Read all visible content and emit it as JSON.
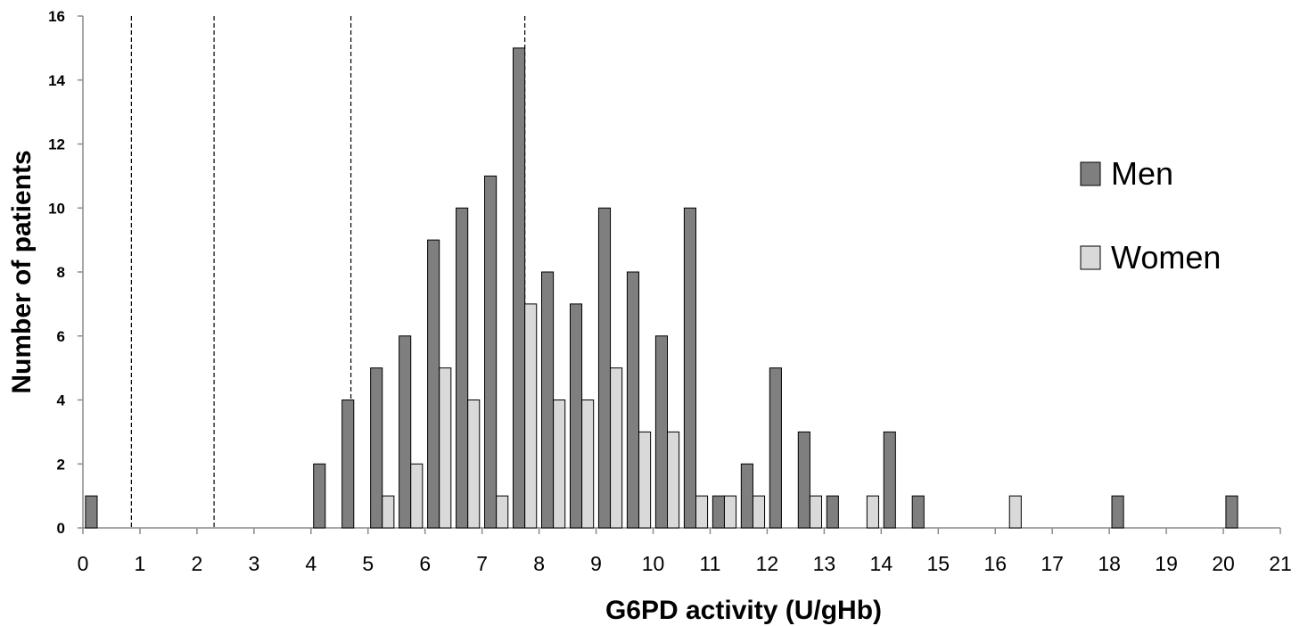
{
  "chart_data": {
    "type": "bar",
    "title": "",
    "xlabel": "G6PD activity (U/gHb)",
    "ylabel": "Number of patients",
    "xlim": [
      0,
      21
    ],
    "ylim": [
      0,
      16
    ],
    "x_ticks": [
      "0",
      "1",
      "2",
      "3",
      "4",
      "5",
      "6",
      "7",
      "8",
      "9",
      "10",
      "11",
      "12",
      "13",
      "14",
      "15",
      "16",
      "17",
      "18",
      "19",
      "20",
      "21"
    ],
    "y_ticks": [
      "0",
      "2",
      "4",
      "6",
      "8",
      "10",
      "12",
      "14",
      "16"
    ],
    "bin_width": 0.5,
    "bin_starts": [
      0,
      0.5,
      1,
      1.5,
      2,
      2.5,
      3,
      3.5,
      4,
      4.5,
      5,
      5.5,
      6,
      6.5,
      7,
      7.5,
      8,
      8.5,
      9,
      9.5,
      10,
      10.5,
      11,
      11.5,
      12,
      12.5,
      13,
      13.5,
      14,
      14.5,
      15,
      15.5,
      16,
      16.5,
      17,
      17.5,
      18,
      18.5,
      19,
      19.5,
      20,
      20.5
    ],
    "series": [
      {
        "name": "Men",
        "color": "#7f7f7f",
        "values": [
          1,
          0,
          0,
          0,
          0,
          0,
          0,
          0,
          2,
          4,
          5,
          6,
          9,
          10,
          11,
          15,
          8,
          7,
          10,
          8,
          6,
          10,
          1,
          2,
          5,
          3,
          1,
          0,
          3,
          1,
          0,
          0,
          0,
          0,
          0,
          0,
          1,
          0,
          0,
          0,
          1,
          0
        ]
      },
      {
        "name": "Women",
        "color": "#d9d9d9",
        "values": [
          0,
          0,
          0,
          0,
          0,
          0,
          0,
          0,
          0,
          0,
          1,
          2,
          5,
          4,
          1,
          7,
          4,
          4,
          5,
          3,
          3,
          1,
          1,
          1,
          0,
          1,
          0,
          1,
          0,
          0,
          0,
          0,
          1,
          0,
          0,
          0,
          0,
          0,
          0,
          0,
          0,
          0
        ]
      }
    ],
    "reference_lines_x": [
      0.85,
      2.3,
      4.7,
      7.75
    ],
    "reference_line_style": "dashed",
    "legend_position": "right",
    "grid": false
  }
}
